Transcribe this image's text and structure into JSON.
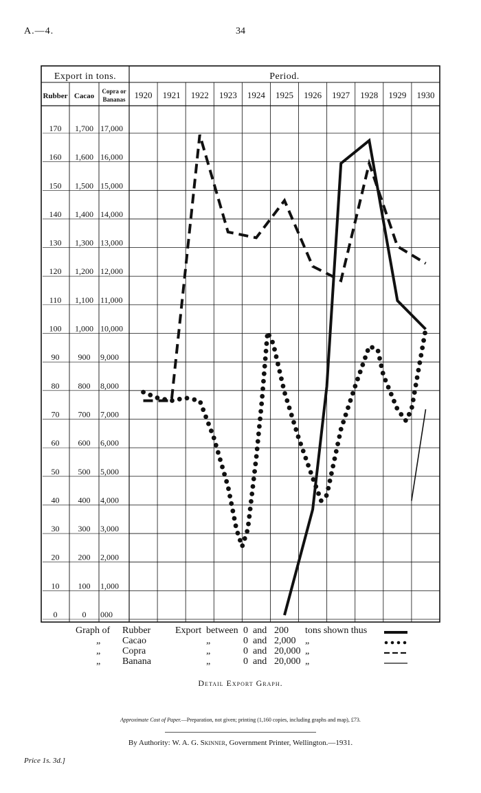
{
  "header": {
    "page_ref": "A.—4.",
    "page_number": "34"
  },
  "table": {
    "group_header": "Export in tons.",
    "period_header": "Period.",
    "col_headers": [
      "Rubber",
      "Cacao",
      "Copra or Bananas"
    ]
  },
  "chart_data": {
    "type": "line",
    "x": [
      "1920",
      "1921",
      "1922",
      "1923",
      "1924",
      "1925",
      "1926",
      "1927",
      "1928",
      "1929",
      "1930"
    ],
    "y_ticks": [
      {
        "rubber": "170",
        "cacao": "1,700",
        "copra_bananas": "17,000"
      },
      {
        "rubber": "160",
        "cacao": "1,600",
        "copra_bananas": "16,000"
      },
      {
        "rubber": "150",
        "cacao": "1,500",
        "copra_bananas": "15,000"
      },
      {
        "rubber": "140",
        "cacao": "1,400",
        "copra_bananas": "14,000"
      },
      {
        "rubber": "130",
        "cacao": "1,300",
        "copra_bananas": "13,000"
      },
      {
        "rubber": "120",
        "cacao": "1,200",
        "copra_bananas": "12,000"
      },
      {
        "rubber": "110",
        "cacao": "1,100",
        "copra_bananas": "11,000"
      },
      {
        "rubber": "100",
        "cacao": "1,000",
        "copra_bananas": "10,000"
      },
      {
        "rubber": "90",
        "cacao": "900",
        "copra_bananas": "9,000"
      },
      {
        "rubber": "80",
        "cacao": "800",
        "copra_bananas": "8,000"
      },
      {
        "rubber": "70",
        "cacao": "700",
        "copra_bananas": "7,000"
      },
      {
        "rubber": "60",
        "cacao": "600",
        "copra_bananas": "6,000"
      },
      {
        "rubber": "50",
        "cacao": "500",
        "copra_bananas": "5,000"
      },
      {
        "rubber": "40",
        "cacao": "400",
        "copra_bananas": "4,000"
      },
      {
        "rubber": "30",
        "cacao": "300",
        "copra_bananas": "3,000"
      },
      {
        "rubber": "20",
        "cacao": "200",
        "copra_bananas": "2,000"
      },
      {
        "rubber": "10",
        "cacao": "100",
        "copra_bananas": "1,000"
      },
      {
        "rubber": "0",
        "cacao": "0",
        "copra_bananas": "000"
      }
    ],
    "ylim": [
      0,
      170
    ],
    "series": [
      {
        "name": "Rubber",
        "style": "solid-thick",
        "points": [
          [
            1925.0,
            0
          ],
          [
            1926.0,
            37
          ],
          [
            1926.5,
            80
          ],
          [
            1927.0,
            158
          ],
          [
            1928.0,
            166
          ],
          [
            1929.0,
            110
          ],
          [
            1930.0,
            100
          ]
        ]
      },
      {
        "name": "Copra",
        "style": "dashed",
        "points": [
          [
            1920.0,
            75
          ],
          [
            1921.0,
            75
          ],
          [
            1922.0,
            168
          ],
          [
            1923.0,
            134
          ],
          [
            1924.0,
            132
          ],
          [
            1925.0,
            145
          ],
          [
            1926.0,
            122
          ],
          [
            1927.0,
            117
          ],
          [
            1928.0,
            158
          ],
          [
            1929.0,
            129
          ],
          [
            1930.0,
            123
          ]
        ]
      },
      {
        "name": "Cacao",
        "style": "dotted",
        "points": [
          [
            1920.0,
            78
          ],
          [
            1920.5,
            76
          ],
          [
            1921.0,
            75
          ],
          [
            1921.5,
            76
          ],
          [
            1922.0,
            75
          ],
          [
            1922.5,
            62
          ],
          [
            1923.0,
            45
          ],
          [
            1923.3,
            30
          ],
          [
            1923.5,
            24
          ],
          [
            1923.7,
            30
          ],
          [
            1924.0,
            55
          ],
          [
            1924.2,
            75
          ],
          [
            1924.4,
            99
          ],
          [
            1924.6,
            95
          ],
          [
            1925.0,
            78
          ],
          [
            1925.5,
            62
          ],
          [
            1926.0,
            48
          ],
          [
            1926.3,
            40
          ],
          [
            1926.5,
            42
          ],
          [
            1927.0,
            65
          ],
          [
            1927.5,
            80
          ],
          [
            1928.0,
            94
          ],
          [
            1928.3,
            93
          ],
          [
            1928.5,
            84
          ],
          [
            1929.0,
            72
          ],
          [
            1929.3,
            68
          ],
          [
            1929.5,
            72
          ],
          [
            1930.0,
            100
          ]
        ]
      },
      {
        "name": "Banana",
        "style": "thin",
        "points": [
          [
            1929.5,
            40
          ],
          [
            1930.0,
            72
          ]
        ]
      }
    ],
    "legend": [
      {
        "lead": "Graph of",
        "name": "Rubber",
        "verb": "Export",
        "mid": "between",
        "low": "0",
        "and": "and",
        "high": "200",
        "tail": "tons shown thus",
        "style": "solid-thick"
      },
      {
        "lead": "",
        "name": "Cacao",
        "verb": "",
        "mid": "„",
        "low": "0",
        "and": "and",
        "high": "2,000",
        "tail": "„",
        "style": "dotted"
      },
      {
        "lead": "",
        "name": "Copra",
        "verb": "",
        "mid": "„",
        "low": "0",
        "and": "and",
        "high": "20,000",
        "tail": "„",
        "style": "dashed"
      },
      {
        "lead": "",
        "name": "Banana",
        "verb": "",
        "mid": "„",
        "low": "0",
        "and": "and",
        "high": "20,000",
        "tail": "„",
        "style": "thin"
      }
    ],
    "ditto_mark": "„"
  },
  "caption": "Detail Export Graph.",
  "footer": {
    "cost_label": "Approximate Cost of Paper.",
    "cost_text": "—Preparation, not given; printing (1,160 copies, including graphs and map), £73.",
    "authority_prefix": "By Authority:",
    "authority_name": "W. A. G. Skinner",
    "authority_suffix": ", Government Printer, Wellington.—1931.",
    "price": "Price 1s. 3d.]"
  }
}
